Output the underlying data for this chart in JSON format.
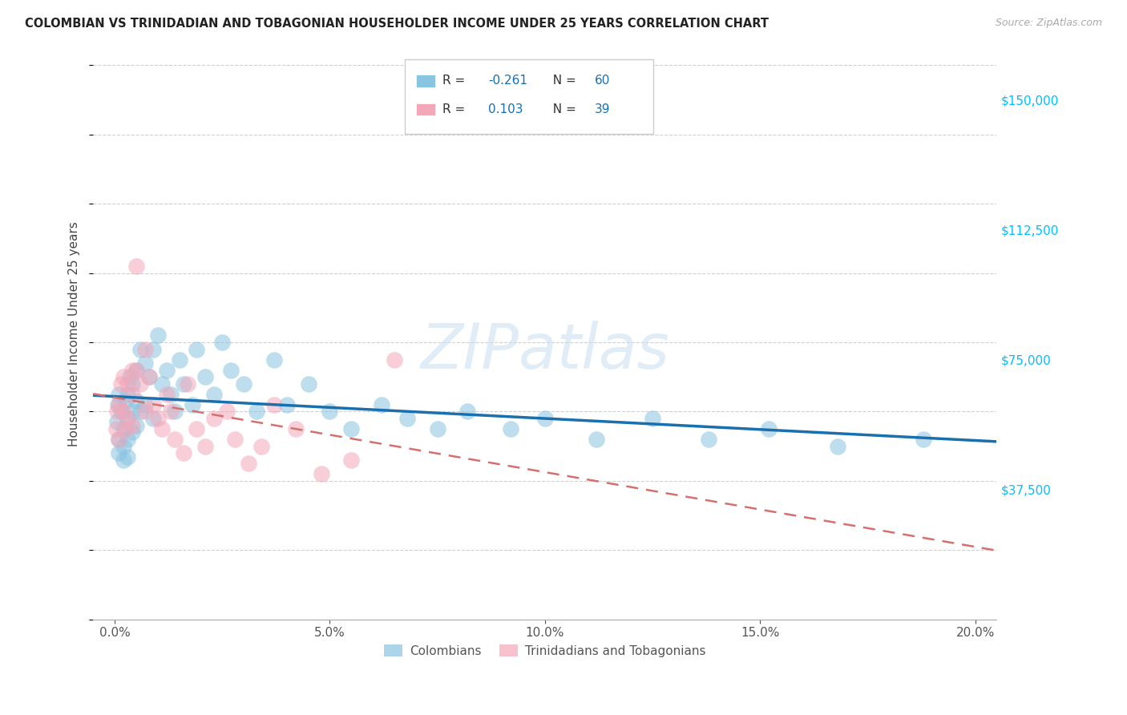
{
  "title": "COLOMBIAN VS TRINIDADIAN AND TOBAGONIAN HOUSEHOLDER INCOME UNDER 25 YEARS CORRELATION CHART",
  "source": "Source: ZipAtlas.com",
  "ylabel": "Householder Income Under 25 years",
  "xlabel_ticks": [
    "0.0%",
    "5.0%",
    "10.0%",
    "15.0%",
    "20.0%"
  ],
  "xlabel_vals": [
    0.0,
    0.05,
    0.1,
    0.15,
    0.2
  ],
  "ylabel_ticks": [
    "$37,500",
    "$75,000",
    "$112,500",
    "$150,000"
  ],
  "ylabel_vals": [
    37500,
    75000,
    112500,
    150000
  ],
  "ylim": [
    0,
    165000
  ],
  "xlim": [
    -0.005,
    0.205
  ],
  "R_colombian": -0.261,
  "N_colombian": 60,
  "R_trinidadian": 0.103,
  "N_trinidadian": 39,
  "color_colombian": "#89c4e1",
  "color_trinidadian": "#f4a7b9",
  "color_line_colombian": "#1a6faf",
  "color_line_trinidadian": "#d4706e",
  "watermark": "ZIPatlas",
  "legend_label_1": "Colombians",
  "legend_label_2": "Trinidadians and Tobagonians",
  "colombian_x": [
    0.0005,
    0.0007,
    0.001,
    0.001,
    0.001,
    0.0015,
    0.002,
    0.002,
    0.002,
    0.0025,
    0.003,
    0.003,
    0.003,
    0.003,
    0.0035,
    0.004,
    0.004,
    0.004,
    0.005,
    0.005,
    0.005,
    0.006,
    0.006,
    0.007,
    0.007,
    0.008,
    0.009,
    0.009,
    0.01,
    0.011,
    0.012,
    0.013,
    0.014,
    0.015,
    0.016,
    0.018,
    0.019,
    0.021,
    0.023,
    0.025,
    0.027,
    0.03,
    0.033,
    0.037,
    0.04,
    0.045,
    0.05,
    0.055,
    0.062,
    0.068,
    0.075,
    0.082,
    0.092,
    0.1,
    0.112,
    0.125,
    0.138,
    0.152,
    0.168,
    0.188
  ],
  "colombian_y": [
    57000,
    62000,
    52000,
    65000,
    48000,
    60000,
    55000,
    50000,
    46000,
    63000,
    65000,
    58000,
    52000,
    47000,
    70000,
    68000,
    60000,
    54000,
    72000,
    63000,
    56000,
    78000,
    60000,
    74000,
    62000,
    70000,
    78000,
    58000,
    82000,
    68000,
    72000,
    65000,
    60000,
    75000,
    68000,
    62000,
    78000,
    70000,
    65000,
    80000,
    72000,
    68000,
    60000,
    75000,
    62000,
    68000,
    60000,
    55000,
    62000,
    58000,
    55000,
    60000,
    55000,
    58000,
    52000,
    58000,
    52000,
    55000,
    50000,
    52000
  ],
  "trinidadian_x": [
    0.0004,
    0.0006,
    0.001,
    0.001,
    0.0015,
    0.002,
    0.002,
    0.0025,
    0.003,
    0.003,
    0.004,
    0.004,
    0.004,
    0.005,
    0.005,
    0.006,
    0.007,
    0.007,
    0.008,
    0.009,
    0.01,
    0.011,
    0.012,
    0.013,
    0.014,
    0.016,
    0.017,
    0.019,
    0.021,
    0.023,
    0.026,
    0.028,
    0.031,
    0.034,
    0.037,
    0.042,
    0.048,
    0.055,
    0.065
  ],
  "trinidadian_y": [
    55000,
    60000,
    62000,
    52000,
    68000,
    70000,
    60000,
    55000,
    68000,
    58000,
    72000,
    65000,
    56000,
    102000,
    72000,
    68000,
    78000,
    60000,
    70000,
    62000,
    58000,
    55000,
    65000,
    60000,
    52000,
    48000,
    68000,
    55000,
    50000,
    58000,
    60000,
    52000,
    45000,
    50000,
    62000,
    55000,
    42000,
    46000,
    75000
  ]
}
